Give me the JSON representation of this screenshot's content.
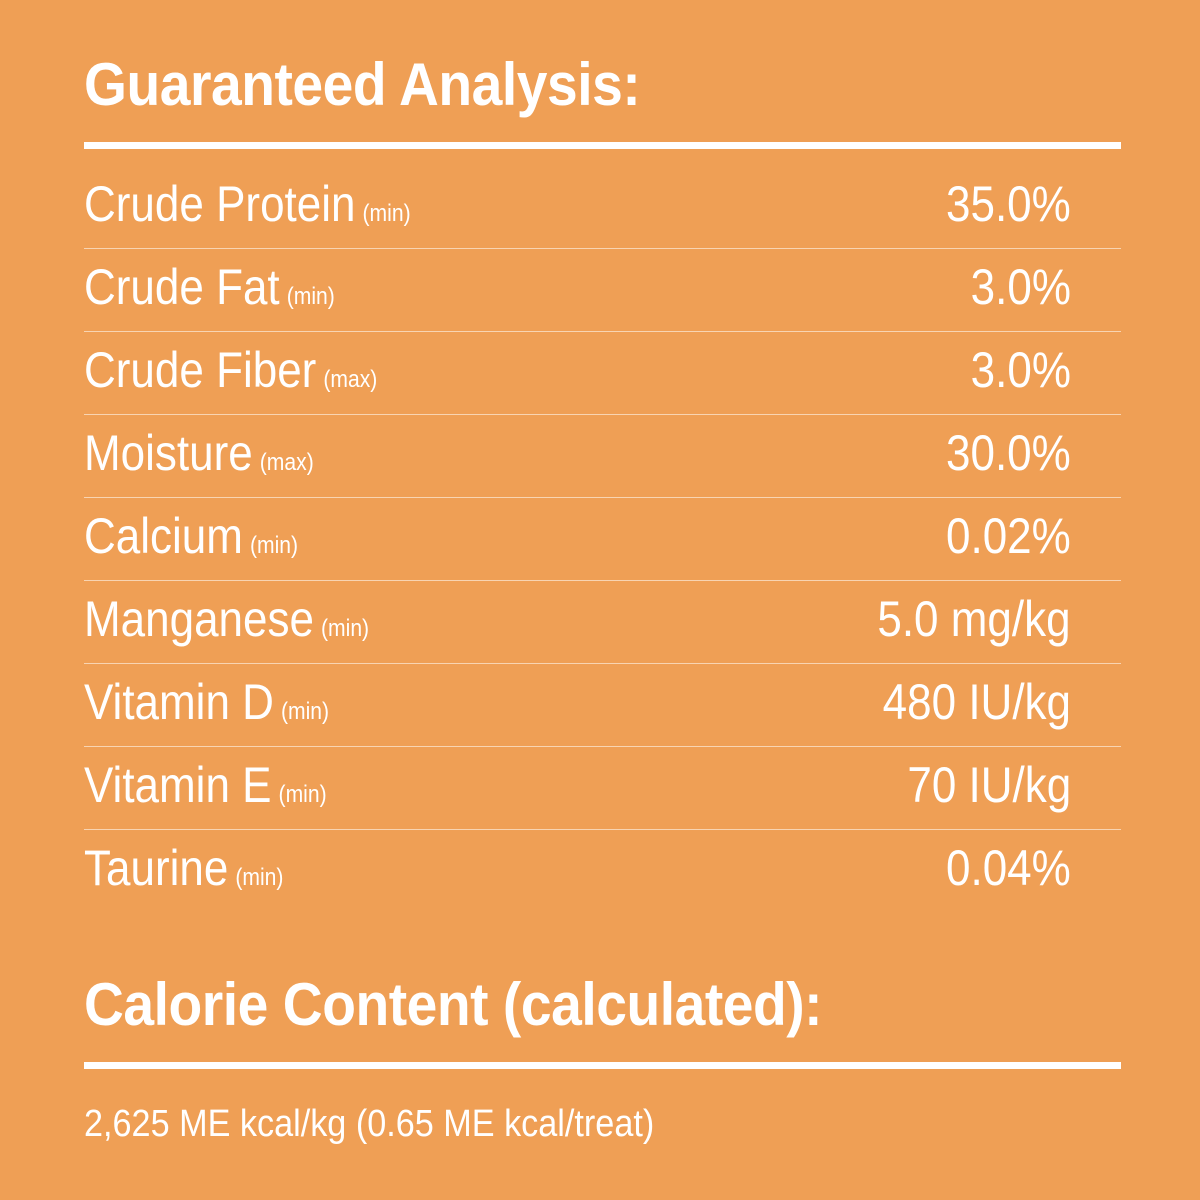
{
  "guaranteed_analysis": {
    "title": "Guaranteed Analysis:",
    "rows": [
      {
        "name": "Crude Protein",
        "qualifier": "(min)",
        "value": "35.0%"
      },
      {
        "name": "Crude Fat",
        "qualifier": "(min)",
        "value": "3.0%"
      },
      {
        "name": "Crude Fiber",
        "qualifier": "(max)",
        "value": "3.0%"
      },
      {
        "name": "Moisture",
        "qualifier": "(max)",
        "value": "30.0%"
      },
      {
        "name": "Calcium",
        "qualifier": "(min)",
        "value": "0.02%"
      },
      {
        "name": "Manganese",
        "qualifier": "(min)",
        "value": "5.0 mg/kg"
      },
      {
        "name": "Vitamin D",
        "qualifier": "(min)",
        "value": "480 IU/kg"
      },
      {
        "name": "Vitamin E",
        "qualifier": "(min)",
        "value": "70 IU/kg"
      },
      {
        "name": "Taurine",
        "qualifier": "(min)",
        "value": "0.04%"
      }
    ]
  },
  "calorie_content": {
    "title": "Calorie Content (calculated):",
    "value": "2,625 ME kcal/kg (0.65 ME kcal/treat)"
  },
  "colors": {
    "background": "#EF9F55",
    "text": "#FFFFFF"
  }
}
